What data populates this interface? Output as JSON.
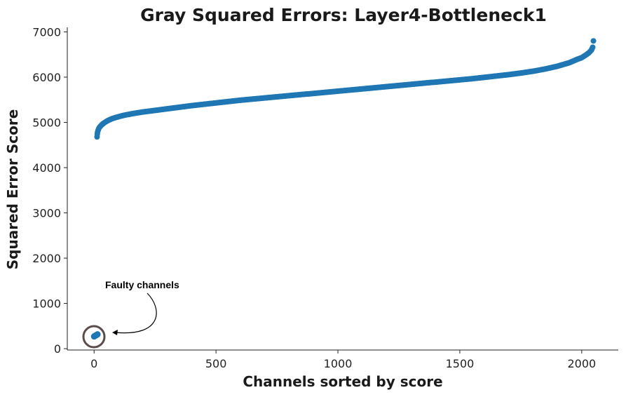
{
  "chart_data": {
    "type": "scatter",
    "title": "Gray Squared Errors: Layer4-Bottleneck1",
    "xlabel": "Channels sorted by score",
    "ylabel": "Squared Error Score",
    "xlim": [
      -110,
      2150
    ],
    "ylim": [
      -30,
      7100
    ],
    "xticks": [
      0,
      500,
      1000,
      1500,
      2000
    ],
    "yticks": [
      0,
      1000,
      2000,
      3000,
      4000,
      5000,
      6000,
      7000
    ],
    "grid": false,
    "legend": "none",
    "series": [
      {
        "color": "#1f77b4",
        "faulty_points": [
          [
            0,
            270
          ],
          [
            2,
            278
          ],
          [
            4,
            284
          ],
          [
            6,
            290
          ],
          [
            8,
            296
          ],
          [
            10,
            302
          ],
          [
            12,
            309
          ],
          [
            14,
            316
          ]
        ],
        "points": [
          [
            12,
            4680
          ],
          [
            13,
            4740
          ],
          [
            14,
            4780
          ],
          [
            16,
            4820
          ],
          [
            18,
            4850
          ],
          [
            20,
            4875
          ],
          [
            25,
            4910
          ],
          [
            30,
            4940
          ],
          [
            35,
            4965
          ],
          [
            40,
            4985
          ],
          [
            50,
            5020
          ],
          [
            60,
            5050
          ],
          [
            75,
            5085
          ],
          [
            90,
            5110
          ],
          [
            110,
            5140
          ],
          [
            130,
            5165
          ],
          [
            160,
            5195
          ],
          [
            200,
            5230
          ],
          [
            250,
            5265
          ],
          [
            300,
            5300
          ],
          [
            350,
            5335
          ],
          [
            400,
            5370
          ],
          [
            450,
            5400
          ],
          [
            500,
            5430
          ],
          [
            550,
            5460
          ],
          [
            600,
            5490
          ],
          [
            650,
            5515
          ],
          [
            700,
            5540
          ],
          [
            750,
            5565
          ],
          [
            800,
            5590
          ],
          [
            850,
            5615
          ],
          [
            900,
            5640
          ],
          [
            950,
            5665
          ],
          [
            1000,
            5690
          ],
          [
            1050,
            5715
          ],
          [
            1100,
            5740
          ],
          [
            1150,
            5765
          ],
          [
            1200,
            5790
          ],
          [
            1250,
            5815
          ],
          [
            1300,
            5840
          ],
          [
            1350,
            5865
          ],
          [
            1400,
            5890
          ],
          [
            1450,
            5915
          ],
          [
            1500,
            5940
          ],
          [
            1550,
            5965
          ],
          [
            1600,
            5995
          ],
          [
            1650,
            6025
          ],
          [
            1700,
            6055
          ],
          [
            1750,
            6090
          ],
          [
            1800,
            6130
          ],
          [
            1850,
            6180
          ],
          [
            1900,
            6240
          ],
          [
            1950,
            6320
          ],
          [
            1980,
            6390
          ],
          [
            2000,
            6430
          ],
          [
            2020,
            6500
          ],
          [
            2030,
            6540
          ],
          [
            2040,
            6600
          ],
          [
            2045,
            6660
          ],
          [
            2048,
            6800
          ]
        ]
      }
    ],
    "annotation": {
      "text": "Faulty channels",
      "x": 20,
      "y": 280
    }
  }
}
